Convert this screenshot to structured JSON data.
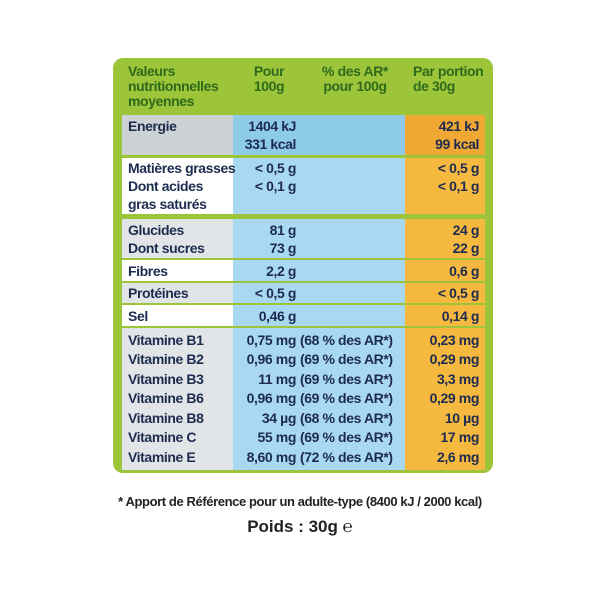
{
  "header": {
    "label": [
      "Valeurs",
      "nutritionnelles",
      "moyennes"
    ],
    "per_100g": [
      "Pour",
      "100g"
    ],
    "ar": [
      "% des AR*",
      "pour 100g"
    ],
    "per_portion": [
      "Par portion",
      "de 30g"
    ]
  },
  "groups": [
    {
      "label": [
        "Energie"
      ],
      "per_100g": [
        "1404 kJ",
        "331 kcal"
      ],
      "ar": [],
      "per_portion": [
        "421 kJ",
        "99 kcal"
      ]
    },
    {
      "label": [
        "Matières grasses",
        "Dont acides",
        "gras saturés"
      ],
      "per_100g": [
        "< 0,5 g",
        "< 0,1 g"
      ],
      "ar": [],
      "per_portion": [
        "< 0,5 g",
        "< 0,1 g"
      ]
    },
    {
      "label": [
        "Glucides",
        "Dont sucres"
      ],
      "per_100g": [
        "81 g",
        "73 g"
      ],
      "ar": [],
      "per_portion": [
        "24 g",
        "22 g"
      ]
    },
    {
      "label": [
        "Fibres"
      ],
      "per_100g": [
        "2,2 g"
      ],
      "ar": [],
      "per_portion": [
        "0,6 g"
      ]
    },
    {
      "label": [
        "Protéines"
      ],
      "per_100g": [
        "< 0,5 g"
      ],
      "ar": [],
      "per_portion": [
        "< 0,5 g"
      ]
    },
    {
      "label": [
        "Sel"
      ],
      "per_100g": [
        "0,46 g"
      ],
      "ar": [],
      "per_portion": [
        "0,14 g"
      ]
    },
    {
      "label": [
        "Vitamine B1",
        "Vitamine B2",
        "Vitamine B3",
        "Vitamine B6",
        "Vitamine B8",
        "Vitamine C",
        "Vitamine E"
      ],
      "per_100g": [
        "0,75 mg",
        "0,96 mg",
        "11 mg",
        "0,96 mg",
        "34 µg",
        "55 mg",
        "8,60 mg"
      ],
      "ar": [
        "(68 % des AR*)",
        "(69 % des AR*)",
        "(69 % des AR*)",
        "(69 % des AR*)",
        "(68 % des AR*)",
        "(69 % des AR*)",
        "(72 % des AR*)"
      ],
      "per_portion": [
        "0,23 mg",
        "0,29 mg",
        "3,3 mg",
        "0,29 mg",
        "10 µg",
        "17 mg",
        "2,6 mg"
      ]
    }
  ],
  "footnote": "* Apport de Référence pour un adulte-type (8400 kJ / 2000 kcal)",
  "weight": "Poids : 30g ℮"
}
